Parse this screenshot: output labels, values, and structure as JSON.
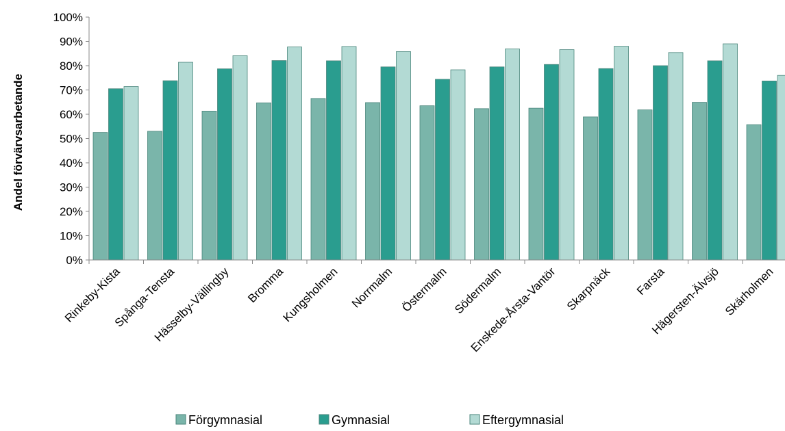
{
  "chart_data": {
    "type": "bar",
    "title": "",
    "xlabel": "",
    "ylabel": "Andel förvärvsarbetande",
    "ylim": [
      0,
      100
    ],
    "yticks": [
      "0%",
      "10%",
      "20%",
      "30%",
      "40%",
      "50%",
      "60%",
      "70%",
      "80%",
      "90%",
      "100%"
    ],
    "grid": false,
    "legend_position": "bottom",
    "categories": [
      "Rinkeby-Kista",
      "Spånga-Tensta",
      "Hässelby-Vällingby",
      "Bromma",
      "Kungsholmen",
      "Norrmalm",
      "Östermalm",
      "Södermalm",
      "Enskede-Årsta-Vantör",
      "Skarpnäck",
      "Farsta",
      "Hägersten-Älvsjö",
      "Skärholmen"
    ],
    "series": [
      {
        "name": "Förgymnasial",
        "color": "#7ab5aa",
        "values": [
          52.5,
          53,
          61.3,
          64.7,
          66.5,
          64.8,
          63.5,
          62.3,
          62.5,
          58.9,
          61.8,
          64.9,
          55.7
        ]
      },
      {
        "name": "Gymnasial",
        "color": "#2a9d8f",
        "values": [
          70.5,
          73.8,
          78.7,
          82.1,
          82,
          79.5,
          74.4,
          79.5,
          80.5,
          78.8,
          80,
          82,
          73.7
        ]
      },
      {
        "name": "Eftergymnasial",
        "color": "#b3dad4",
        "values": [
          71.4,
          81.4,
          84.1,
          87.7,
          87.9,
          85.8,
          78.3,
          86.9,
          86.6,
          88,
          85.4,
          89,
          76
        ]
      }
    ]
  }
}
